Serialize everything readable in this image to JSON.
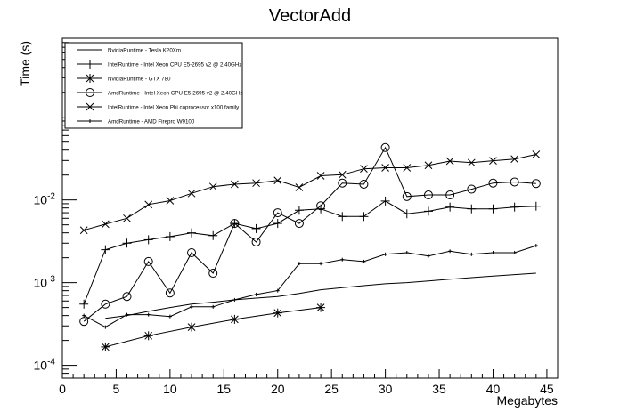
{
  "chart_data": {
    "type": "line",
    "title": "VectorAdd",
    "xlabel": "Megabytes",
    "ylabel": "Time (s)",
    "xlim": [
      0,
      46
    ],
    "ylim": [
      7e-05,
      0.9
    ],
    "yscale": "log",
    "grid": false,
    "legend_position": "top-left",
    "x_ticks": [
      "0",
      "5",
      "10",
      "15",
      "20",
      "25",
      "30",
      "35",
      "40",
      "45"
    ],
    "x_tick_values": [
      0,
      5,
      10,
      15,
      20,
      25,
      30,
      35,
      40,
      45
    ],
    "y_ticks": [
      {
        "base": "10",
        "exp": "-4",
        "value": 0.0001
      },
      {
        "base": "10",
        "exp": "-3",
        "value": 0.001
      },
      {
        "base": "10",
        "exp": "-2",
        "value": 0.01
      }
    ],
    "series": [
      {
        "name": "NvidiaRuntime - Tesla K20Xm",
        "marker": "none",
        "x": [
          4,
          6,
          8,
          10,
          12,
          14,
          16,
          18,
          20,
          22,
          24,
          26,
          28,
          30,
          32,
          34,
          36,
          38,
          40,
          42,
          44
        ],
        "y": [
          0.00037,
          0.0004,
          0.00045,
          0.0005,
          0.00055,
          0.00058,
          0.00062,
          0.00065,
          0.00068,
          0.00074,
          0.00082,
          0.00087,
          0.00092,
          0.00097,
          0.001,
          0.00105,
          0.0011,
          0.00115,
          0.0012,
          0.00125,
          0.0013
        ]
      },
      {
        "name": "IntelRuntime - Intel Xeon CPU E5-2695 v2 @ 2.40GHz",
        "marker": "plus",
        "x": [
          2,
          4,
          6,
          8,
          10,
          12,
          14,
          16,
          18,
          20,
          22,
          24,
          26,
          28,
          30,
          32,
          34,
          36,
          38,
          40,
          42,
          44
        ],
        "y": [
          0.00055,
          0.0025,
          0.003,
          0.0033,
          0.0036,
          0.004,
          0.0037,
          0.0052,
          0.0045,
          0.0052,
          0.0075,
          0.0078,
          0.0063,
          0.0063,
          0.0097,
          0.0068,
          0.0073,
          0.0082,
          0.0078,
          0.0078,
          0.0082,
          0.0084
        ]
      },
      {
        "name": "NvidiaRuntime - GTX 780",
        "marker": "star",
        "x": [
          4,
          8,
          12,
          16,
          20,
          24
        ],
        "y": [
          0.000167,
          0.000228,
          0.00029,
          0.00036,
          0.00043,
          0.0005
        ]
      },
      {
        "name": "AmdRuntime - Intel Xeon CPU E5-2695 v2 @ 2.40GHz",
        "marker": "circle",
        "x": [
          2,
          4,
          6,
          8,
          10,
          12,
          14,
          16,
          18,
          20,
          22,
          24,
          26,
          28,
          30,
          32,
          34,
          36,
          38,
          40,
          42,
          44
        ],
        "y": [
          0.00034,
          0.00055,
          0.00068,
          0.0018,
          0.00075,
          0.0023,
          0.0013,
          0.0052,
          0.0031,
          0.007,
          0.0052,
          0.0085,
          0.016,
          0.0155,
          0.043,
          0.011,
          0.0115,
          0.0115,
          0.0135,
          0.016,
          0.0165,
          0.0158
        ]
      },
      {
        "name": "IntelRuntime - Intel Xeon Phi coprocessor x100 family",
        "marker": "cross",
        "x": [
          2,
          4,
          6,
          8,
          10,
          12,
          14,
          16,
          18,
          20,
          22,
          24,
          26,
          28,
          30,
          32,
          34,
          36,
          38,
          40,
          42,
          44
        ],
        "y": [
          0.0043,
          0.0051,
          0.006,
          0.0088,
          0.0098,
          0.012,
          0.0145,
          0.0155,
          0.016,
          0.0172,
          0.0142,
          0.0196,
          0.0202,
          0.0238,
          0.0245,
          0.0245,
          0.0262,
          0.0295,
          0.0282,
          0.0298,
          0.0312,
          0.0355
        ]
      },
      {
        "name": "AmdRuntime - AMD Firepro W9100",
        "marker": "dot",
        "x": [
          2,
          4,
          6,
          8,
          10,
          12,
          14,
          16,
          18,
          20,
          22,
          24,
          26,
          28,
          30,
          32,
          34,
          36,
          38,
          40,
          42,
          44
        ],
        "y": [
          0.0004,
          0.00029,
          0.00041,
          0.00041,
          0.00039,
          0.00051,
          0.00051,
          0.00062,
          0.00072,
          0.0008,
          0.0017,
          0.0017,
          0.0019,
          0.0018,
          0.0022,
          0.0023,
          0.0021,
          0.0024,
          0.0022,
          0.0023,
          0.0023,
          0.0028
        ]
      }
    ]
  }
}
